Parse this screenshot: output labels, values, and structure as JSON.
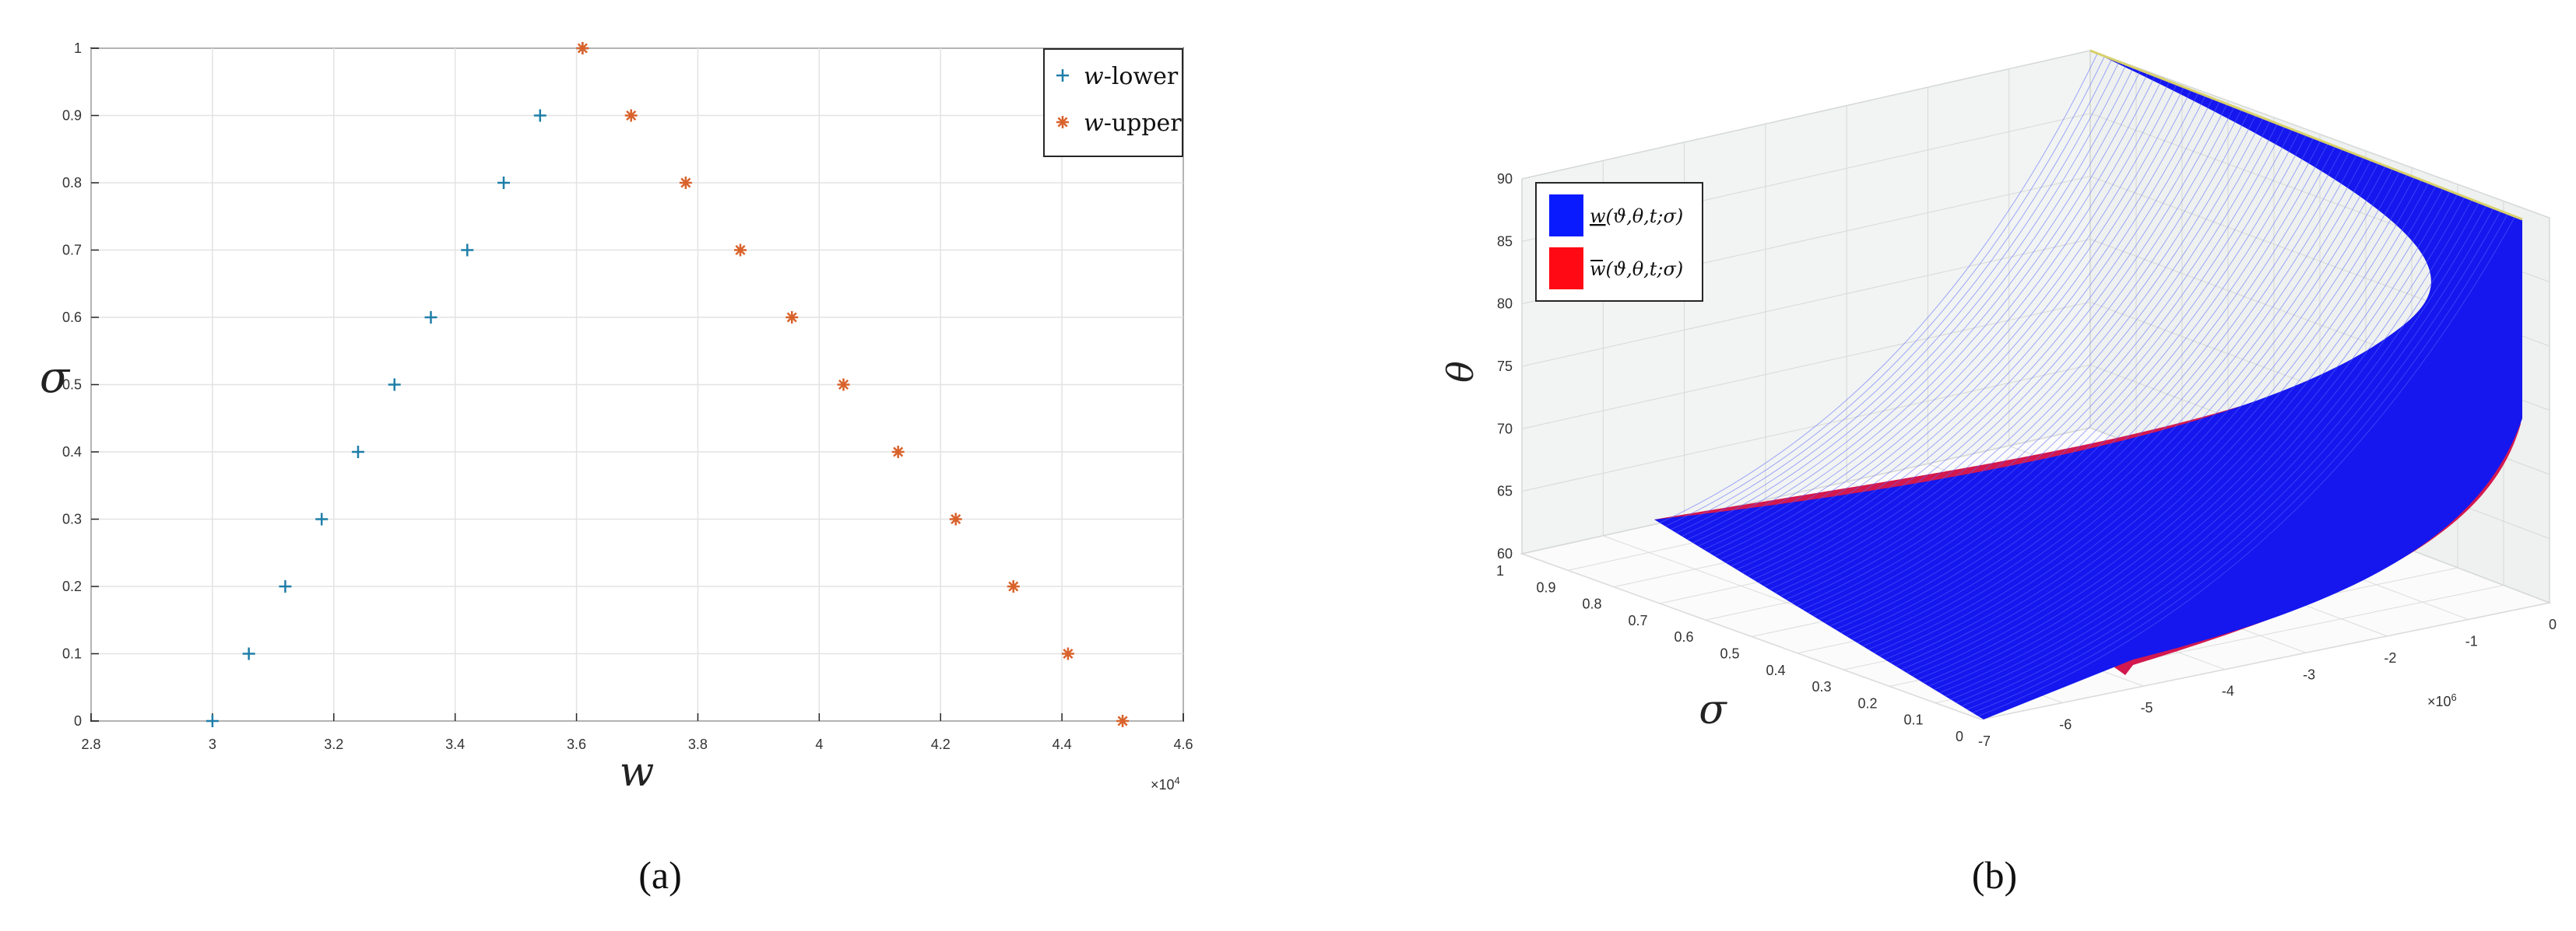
{
  "captions": {
    "a": "(a)",
    "b": "(b)"
  },
  "chart_data": [
    {
      "type": "scatter",
      "panel": "(a)",
      "xlabel": "w",
      "ylabel": "σ",
      "x_exponent": "×10",
      "x_exponent_power": "4",
      "xlim": [
        2.8,
        4.6
      ],
      "ylim": [
        0,
        1
      ],
      "grid": true,
      "legend_position": "top-right",
      "x_ticks": [
        "2.8",
        "3",
        "3.2",
        "3.4",
        "3.6",
        "3.8",
        "4",
        "4.2",
        "4.4",
        "4.6"
      ],
      "y_ticks": [
        "0",
        "0.1",
        "0.2",
        "0.3",
        "0.4",
        "0.5",
        "0.6",
        "0.7",
        "0.8",
        "0.9",
        "1"
      ],
      "series": [
        {
          "name": "w-lower",
          "name_italic": "w",
          "name_rest": "-lower",
          "marker": "+",
          "color": "#1f7ea8",
          "x": [
            3.0,
            3.06,
            3.12,
            3.18,
            3.24,
            3.3,
            3.36,
            3.42,
            3.48,
            3.54,
            3.61
          ],
          "y": [
            0,
            0.1,
            0.2,
            0.3,
            0.4,
            0.5,
            0.6,
            0.7,
            0.8,
            0.9,
            1.0
          ]
        },
        {
          "name": "w-upper",
          "name_italic": "w",
          "name_rest": "-upper",
          "marker": "*",
          "color": "#d9622b",
          "x": [
            3.61,
            3.69,
            3.78,
            3.87,
            3.955,
            4.04,
            4.13,
            4.225,
            4.32,
            4.41,
            4.5
          ],
          "y": [
            1.0,
            0.9,
            0.8,
            0.7,
            0.6,
            0.5,
            0.4,
            0.3,
            0.2,
            0.1,
            0
          ]
        }
      ]
    },
    {
      "type": "surface",
      "panel": "(b)",
      "zlabel": "θ",
      "ylabel": "σ",
      "xlabel": "",
      "x_exponent": "×10",
      "x_exponent_power": "6",
      "z_ticks": [
        "60",
        "65",
        "70",
        "75",
        "80",
        "85",
        "90"
      ],
      "sigma_ticks": [
        "0",
        "0.1",
        "0.2",
        "0.3",
        "0.4",
        "0.5",
        "0.6",
        "0.7",
        "0.8",
        "0.9",
        "1"
      ],
      "x_ticks": [
        "-7",
        "-6",
        "-5",
        "-4",
        "-3",
        "-2",
        "-1",
        "0"
      ],
      "zlim": [
        60,
        90
      ],
      "grid": true,
      "legend_position": "top-left",
      "series": [
        {
          "name": "w(ϑ,θ,t;σ)",
          "name_base": "w",
          "name_rest": "(ϑ,θ,t;σ)",
          "bar": "under",
          "color": "#0a1aff"
        },
        {
          "name": "w(ϑ,θ,t;σ)",
          "name_base": "w",
          "name_rest": "(ϑ,θ,t;σ)",
          "bar": "over",
          "color": "#ff0a14"
        }
      ]
    }
  ]
}
